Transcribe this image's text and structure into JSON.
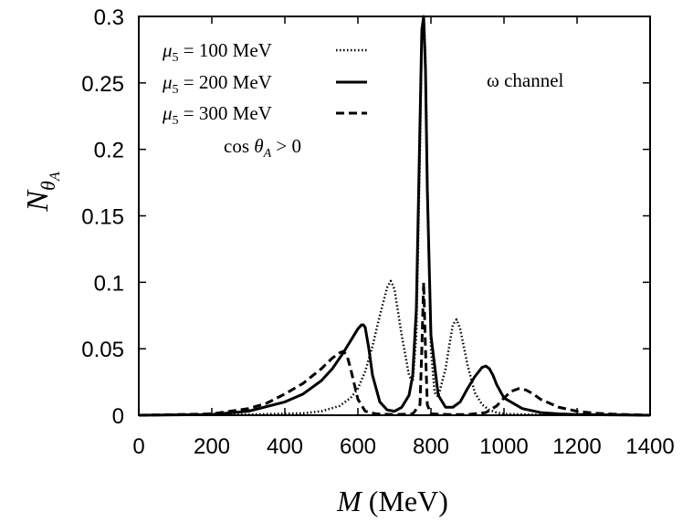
{
  "chart_data": {
    "type": "line",
    "xlabel_var": "M",
    "xlabel_unit": "(MeV)",
    "ylabel_base": "N",
    "ylabel_sub": "θ",
    "ylabel_subsub": "A",
    "xlim": [
      0,
      1400
    ],
    "ylim": [
      0,
      0.3
    ],
    "x_ticks": [
      0,
      200,
      400,
      600,
      800,
      1000,
      1200,
      1400
    ],
    "x_tick_labels": [
      "0",
      "200",
      "400",
      "600",
      "800",
      "1000",
      "1200",
      "1400"
    ],
    "y_ticks": [
      0,
      0.05,
      0.1,
      0.15,
      0.2,
      0.25,
      0.3
    ],
    "y_tick_labels": [
      "0",
      "0.05",
      "0.1",
      "0.15",
      "0.2",
      "0.25",
      "0.3"
    ],
    "annotations": {
      "channel": "ω channel",
      "condition": "cos θ_A > 0"
    },
    "series": [
      {
        "name": "μ5 = 100 MeV",
        "label_var": "μ",
        "label_sub": "5",
        "label_rest": " = 100 MeV",
        "style": "dotted",
        "x": [
          0,
          300,
          450,
          500,
          550,
          580,
          600,
          620,
          640,
          660,
          680,
          690,
          700,
          720,
          740,
          750,
          760,
          770,
          775,
          780,
          785,
          790,
          800,
          810,
          820,
          840,
          850,
          860,
          870,
          880,
          900,
          920,
          940,
          960,
          980,
          1000,
          1100,
          1400
        ],
        "y": [
          0,
          0.0005,
          0.0015,
          0.003,
          0.007,
          0.013,
          0.02,
          0.033,
          0.052,
          0.075,
          0.096,
          0.101,
          0.095,
          0.06,
          0.03,
          0.025,
          0.06,
          0.2,
          0.29,
          0.3,
          0.27,
          0.18,
          0.05,
          0.017,
          0.014,
          0.035,
          0.052,
          0.068,
          0.072,
          0.065,
          0.038,
          0.017,
          0.008,
          0.004,
          0.002,
          0.001,
          0.0003,
          0
        ]
      },
      {
        "name": "μ5 = 200 MeV",
        "label_var": "μ",
        "label_sub": "5",
        "label_rest": " = 200 MeV",
        "style": "solid",
        "x": [
          0,
          200,
          300,
          400,
          450,
          500,
          530,
          560,
          580,
          600,
          610,
          615,
          620,
          630,
          640,
          660,
          680,
          700,
          720,
          740,
          750,
          760,
          770,
          775,
          780,
          785,
          790,
          800,
          820,
          840,
          860,
          880,
          900,
          920,
          940,
          950,
          960,
          970,
          980,
          1000,
          1050,
          1100,
          1150,
          1200,
          1400
        ],
        "y": [
          0,
          0.0005,
          0.003,
          0.01,
          0.016,
          0.026,
          0.035,
          0.047,
          0.056,
          0.065,
          0.068,
          0.068,
          0.066,
          0.05,
          0.03,
          0.01,
          0.004,
          0.003,
          0.006,
          0.015,
          0.03,
          0.08,
          0.22,
          0.29,
          0.3,
          0.26,
          0.17,
          0.06,
          0.015,
          0.006,
          0.006,
          0.01,
          0.02,
          0.029,
          0.036,
          0.037,
          0.035,
          0.03,
          0.023,
          0.013,
          0.005,
          0.002,
          0.001,
          0.0005,
          0
        ]
      },
      {
        "name": "μ5 = 300 MeV",
        "label_var": "μ",
        "label_sub": "5",
        "label_rest": " = 300 MeV",
        "style": "dashed",
        "x": [
          0,
          200,
          300,
          350,
          400,
          450,
          500,
          530,
          550,
          560,
          570,
          580,
          600,
          620,
          650,
          700,
          750,
          770,
          775,
          780,
          785,
          790,
          800,
          850,
          900,
          950,
          980,
          1000,
          1020,
          1040,
          1060,
          1080,
          1100,
          1150,
          1200,
          1250,
          1300,
          1400
        ],
        "y": [
          0,
          0.001,
          0.005,
          0.009,
          0.016,
          0.024,
          0.035,
          0.043,
          0.047,
          0.048,
          0.045,
          0.035,
          0.012,
          0.003,
          0.001,
          0.0005,
          0.001,
          0.008,
          0.05,
          0.1,
          0.05,
          0.008,
          0.001,
          0.0005,
          0.0005,
          0.002,
          0.007,
          0.013,
          0.018,
          0.02,
          0.019,
          0.016,
          0.012,
          0.006,
          0.003,
          0.0015,
          0.0008,
          0
        ]
      }
    ]
  }
}
